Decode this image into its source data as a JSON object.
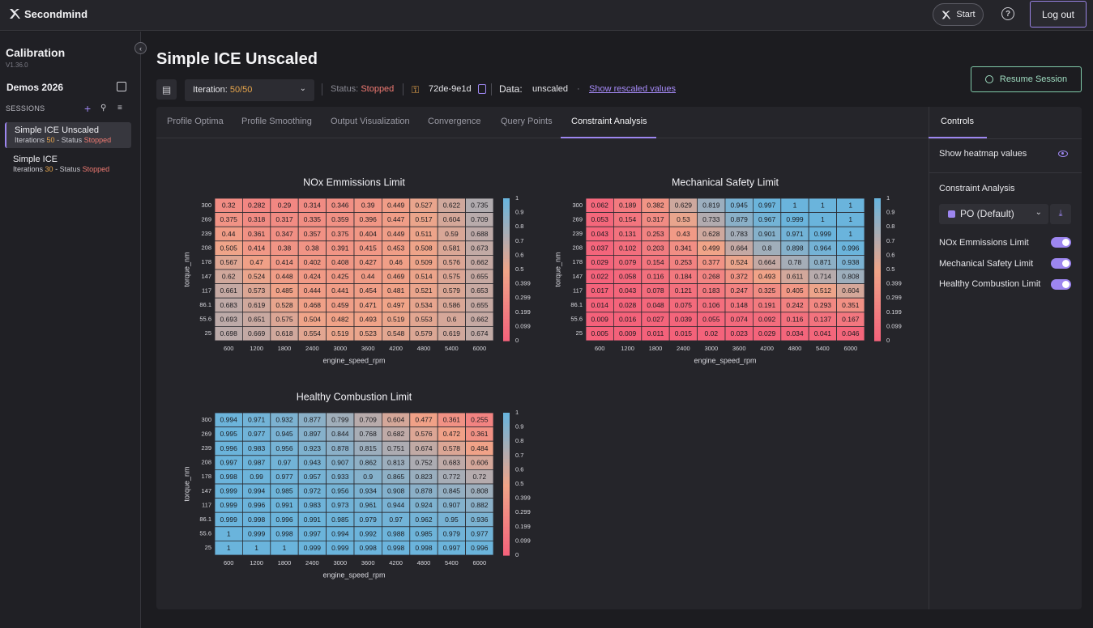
{
  "topbar": {
    "brand": "Secondmind",
    "start_label": "Start",
    "help_icon": "?",
    "logout_label": "Log out"
  },
  "sidebar": {
    "app_title": "Calibration",
    "version": "V1.36.0",
    "project": "Demos 2026",
    "sessions_label": "SESSIONS",
    "sessions": [
      {
        "name": "Simple ICE Unscaled",
        "iter_prefix": "Iterations",
        "iterations": "50",
        "status_prefix": "- Status",
        "status": "Stopped"
      },
      {
        "name": "Simple ICE",
        "iter_prefix": "Iterations",
        "iterations": "30",
        "status_prefix": "- Status",
        "status": "Stopped"
      }
    ]
  },
  "header": {
    "title": "Simple ICE Unscaled",
    "iteration_prefix": "Iteration:",
    "iteration_value": "50/50",
    "status_prefix": "Status:",
    "status": "Stopped",
    "hash": "72de-9e1d",
    "data_label": "Data:",
    "data_value": "unscaled",
    "data_dot": "·",
    "rescaled_link": "Show rescaled values",
    "resume_label": "Resume Session"
  },
  "tabs": [
    "Profile Optima",
    "Profile Smoothing",
    "Output Visualization",
    "Convergence",
    "Query Points",
    "Constraint Analysis"
  ],
  "controls": {
    "tab": "Controls",
    "show_heatmap_values": "Show heatmap values",
    "section": "Constraint Analysis",
    "point_select": "PO (Default)",
    "toggles": [
      {
        "label": "NOx Emmissions Limit",
        "on": true
      },
      {
        "label": "Mechanical Safety Limit",
        "on": true
      },
      {
        "label": "Healthy Combustion Limit",
        "on": true
      }
    ]
  },
  "colors": {
    "accent": "#9d86f0",
    "low": "#f4607a",
    "mid": "#f0a488",
    "high": "#6ab4dc",
    "stopped": "#f07a72",
    "iter": "#e8a64c"
  },
  "chart_data": [
    {
      "type": "heatmap",
      "title": "NOx Emmissions Limit",
      "xlabel": "engine_speed_rpm",
      "ylabel": "torque_nm",
      "x": [
        "600",
        "1200",
        "1800",
        "2400",
        "3000",
        "3600",
        "4200",
        "4800",
        "5400",
        "6000"
      ],
      "y": [
        "300",
        "269",
        "239",
        "208",
        "178",
        "147",
        "117",
        "86.1",
        "55.6",
        "25"
      ],
      "colorbar_ticks": [
        "1",
        "0.9",
        "0.8",
        "0.7",
        "0.6",
        "0.5",
        "0.399",
        "0.299",
        "0.199",
        "0.099",
        "0"
      ],
      "values": [
        [
          "0.32",
          "0.282",
          "0.29",
          "0.314",
          "0.346",
          "0.39",
          "0.449",
          "0.527",
          "0.622",
          "0.735"
        ],
        [
          "0.375",
          "0.318",
          "0.317",
          "0.335",
          "0.359",
          "0.396",
          "0.447",
          "0.517",
          "0.604",
          "0.709"
        ],
        [
          "0.44",
          "0.361",
          "0.347",
          "0.357",
          "0.375",
          "0.404",
          "0.449",
          "0.511",
          "0.59",
          "0.688"
        ],
        [
          "0.505",
          "0.414",
          "0.38",
          "0.38",
          "0.391",
          "0.415",
          "0.453",
          "0.508",
          "0.581",
          "0.673"
        ],
        [
          "0.567",
          "0.47",
          "0.414",
          "0.402",
          "0.408",
          "0.427",
          "0.46",
          "0.509",
          "0.576",
          "0.662"
        ],
        [
          "0.62",
          "0.524",
          "0.448",
          "0.424",
          "0.425",
          "0.44",
          "0.469",
          "0.514",
          "0.575",
          "0.655"
        ],
        [
          "0.661",
          "0.573",
          "0.485",
          "0.444",
          "0.441",
          "0.454",
          "0.481",
          "0.521",
          "0.579",
          "0.653"
        ],
        [
          "0.683",
          "0.619",
          "0.528",
          "0.468",
          "0.459",
          "0.471",
          "0.497",
          "0.534",
          "0.586",
          "0.655"
        ],
        [
          "0.693",
          "0.651",
          "0.575",
          "0.504",
          "0.482",
          "0.493",
          "0.519",
          "0.553",
          "0.6",
          "0.662"
        ],
        [
          "0.698",
          "0.669",
          "0.618",
          "0.554",
          "0.519",
          "0.523",
          "0.548",
          "0.579",
          "0.619",
          "0.674"
        ]
      ]
    },
    {
      "type": "heatmap",
      "title": "Mechanical Safety Limit",
      "xlabel": "engine_speed_rpm",
      "ylabel": "torque_nm",
      "x": [
        "600",
        "1200",
        "1800",
        "2400",
        "3000",
        "3600",
        "4200",
        "4800",
        "5400",
        "6000"
      ],
      "y": [
        "300",
        "269",
        "239",
        "208",
        "178",
        "147",
        "117",
        "86.1",
        "55.6",
        "25"
      ],
      "colorbar_ticks": [
        "1",
        "0.9",
        "0.8",
        "0.7",
        "0.6",
        "0.5",
        "0.399",
        "0.299",
        "0.199",
        "0.099",
        "0"
      ],
      "values": [
        [
          "0.062",
          "0.189",
          "0.382",
          "0.629",
          "0.819",
          "0.945",
          "0.997",
          "1",
          "1",
          "1"
        ],
        [
          "0.053",
          "0.154",
          "0.317",
          "0.53",
          "0.733",
          "0.879",
          "0.967",
          "0.999",
          "1",
          "1"
        ],
        [
          "0.043",
          "0.131",
          "0.253",
          "0.43",
          "0.628",
          "0.783",
          "0.901",
          "0.971",
          "0.999",
          "1"
        ],
        [
          "0.037",
          "0.102",
          "0.203",
          "0.341",
          "0.499",
          "0.664",
          "0.8",
          "0.898",
          "0.964",
          "0.996"
        ],
        [
          "0.029",
          "0.079",
          "0.154",
          "0.253",
          "0.377",
          "0.524",
          "0.664",
          "0.78",
          "0.871",
          "0.938"
        ],
        [
          "0.022",
          "0.058",
          "0.116",
          "0.184",
          "0.268",
          "0.372",
          "0.493",
          "0.611",
          "0.714",
          "0.808"
        ],
        [
          "0.017",
          "0.043",
          "0.078",
          "0.121",
          "0.183",
          "0.247",
          "0.325",
          "0.405",
          "0.512",
          "0.604"
        ],
        [
          "0.014",
          "0.028",
          "0.048",
          "0.075",
          "0.106",
          "0.148",
          "0.191",
          "0.242",
          "0.293",
          "0.351"
        ],
        [
          "0.009",
          "0.016",
          "0.027",
          "0.039",
          "0.055",
          "0.074",
          "0.092",
          "0.116",
          "0.137",
          "0.167"
        ],
        [
          "0.005",
          "0.009",
          "0.011",
          "0.015",
          "0.02",
          "0.023",
          "0.029",
          "0.034",
          "0.041",
          "0.046"
        ]
      ]
    },
    {
      "type": "heatmap",
      "title": "Healthy Combustion Limit",
      "xlabel": "engine_speed_rpm",
      "ylabel": "torque_nm",
      "x": [
        "600",
        "1200",
        "1800",
        "2400",
        "3000",
        "3600",
        "4200",
        "4800",
        "5400",
        "6000"
      ],
      "y": [
        "300",
        "269",
        "239",
        "208",
        "178",
        "147",
        "117",
        "86.1",
        "55.6",
        "25"
      ],
      "colorbar_ticks": [
        "1",
        "0.9",
        "0.8",
        "0.7",
        "0.6",
        "0.5",
        "0.399",
        "0.299",
        "0.199",
        "0.099",
        "0"
      ],
      "values": [
        [
          "0.994",
          "0.971",
          "0.932",
          "0.877",
          "0.799",
          "0.709",
          "0.604",
          "0.477",
          "0.361",
          "0.255"
        ],
        [
          "0.995",
          "0.977",
          "0.945",
          "0.897",
          "0.844",
          "0.768",
          "0.682",
          "0.576",
          "0.472",
          "0.361"
        ],
        [
          "0.996",
          "0.983",
          "0.956",
          "0.923",
          "0.878",
          "0.815",
          "0.751",
          "0.674",
          "0.578",
          "0.484"
        ],
        [
          "0.997",
          "0.987",
          "0.97",
          "0.943",
          "0.907",
          "0.862",
          "0.813",
          "0.752",
          "0.683",
          "0.606"
        ],
        [
          "0.998",
          "0.99",
          "0.977",
          "0.957",
          "0.933",
          "0.9",
          "0.865",
          "0.823",
          "0.772",
          "0.72"
        ],
        [
          "0.999",
          "0.994",
          "0.985",
          "0.972",
          "0.956",
          "0.934",
          "0.908",
          "0.878",
          "0.845",
          "0.808"
        ],
        [
          "0.999",
          "0.996",
          "0.991",
          "0.983",
          "0.973",
          "0.961",
          "0.944",
          "0.924",
          "0.907",
          "0.882"
        ],
        [
          "0.999",
          "0.998",
          "0.996",
          "0.991",
          "0.985",
          "0.979",
          "0.97",
          "0.962",
          "0.95",
          "0.936"
        ],
        [
          "1",
          "0.999",
          "0.998",
          "0.997",
          "0.994",
          "0.992",
          "0.988",
          "0.985",
          "0.979",
          "0.977"
        ],
        [
          "1",
          "1",
          "1",
          "0.999",
          "0.999",
          "0.998",
          "0.998",
          "0.998",
          "0.997",
          "0.996"
        ]
      ]
    }
  ]
}
